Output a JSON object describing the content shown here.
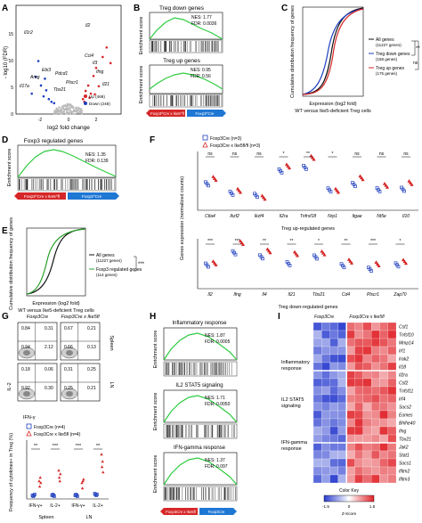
{
  "panels": {
    "A": {
      "letter": "A",
      "xlabel": "log2 fold change",
      "ylabel": "- log10 (FDR)",
      "yticks": [
        "0",
        "5",
        "10",
        "15"
      ],
      "xticks": [
        "-2",
        "0",
        "2"
      ],
      "genes": [
        "Il1r2",
        "Areg",
        "Ebi3",
        "Il17a",
        "Tbx21",
        "Pdcd1",
        "Plscr1",
        "Il2",
        "Ifng",
        "Il21",
        "Ccl4",
        "Il3"
      ],
      "legend": [
        {
          "label": "Up (469)",
          "color": "#d62728"
        },
        {
          "label": "Down (248)",
          "color": "#1f3fbf"
        }
      ],
      "volcano_points": [
        {
          "x": -2.8,
          "y": 3.0
        },
        {
          "x": -2.5,
          "y": 5.5
        },
        {
          "x": -2.3,
          "y": 7.8
        },
        {
          "x": -2.1,
          "y": 4.2
        },
        {
          "x": -1.9,
          "y": 2.6
        },
        {
          "x": -1.7,
          "y": 3.5
        },
        {
          "x": -1.5,
          "y": 2.2
        },
        {
          "x": -1.3,
          "y": 1.8
        },
        {
          "x": -1.1,
          "y": 1.6
        },
        {
          "x": -1.8,
          "y": 5.2
        },
        {
          "x": 1.1,
          "y": 2.2
        },
        {
          "x": 1.3,
          "y": 3.4
        },
        {
          "x": 1.5,
          "y": 4.2
        },
        {
          "x": 1.7,
          "y": 3.0
        },
        {
          "x": 1.9,
          "y": 5.6
        },
        {
          "x": 2.1,
          "y": 6.8
        },
        {
          "x": 2.3,
          "y": 4.1
        },
        {
          "x": 2.6,
          "y": 8.4
        },
        {
          "x": 2.9,
          "y": 9.8
        },
        {
          "x": 3.2,
          "y": 7.5
        },
        {
          "x": 1.2,
          "y": 1.8
        },
        {
          "x": 1.6,
          "y": 2.4
        },
        {
          "x": 2.0,
          "y": 2.9
        }
      ]
    },
    "B": {
      "letter": "B",
      "top": {
        "title": "Treg down genes",
        "nes": "NES: 1.77",
        "fdr": "FDR: 0.0036"
      },
      "bottom": {
        "title": "Treg up genes",
        "nes": "NES: 0.95",
        "fdr": "FDR: 0.56"
      },
      "ylabel": "Enrichment score",
      "bar_left": "Foxp3^Cre x Ike5^fl",
      "bar_right": "Foxp3^Cre"
    },
    "C": {
      "letter": "C",
      "ylabel": "Cumulative distribution frequency of genes",
      "xlabel": "Expression (log2 fold)",
      "caption": "WT versus Ike5-deficient Treg cells",
      "legend": [
        {
          "label": "All genes",
          "sub": "(11227 genes)",
          "color": "#111111"
        },
        {
          "label": "Treg down genes",
          "sub": "(158 genes)",
          "color": "#1f3fbf"
        },
        {
          "label": "Treg up genes",
          "sub": "(175 genes)",
          "color": "#d62728"
        }
      ],
      "sig1": "**",
      "sig2": "ns"
    },
    "D": {
      "letter": "D",
      "title": "Foxp3 regulated genes",
      "nes": "NES: 1.35",
      "fdr": "FDR: 0.139",
      "ylabel": "Enrichment score",
      "bar_left": "Foxp3^Cre x Ike5^fl",
      "bar_right": "Foxp3^Cre"
    },
    "E": {
      "letter": "E",
      "ylabel": "Cumulative distribution frequency of genes",
      "xlabel": "Expression (log2 fold)",
      "caption": "WT versus Ike5-deficient Treg cells",
      "legend": [
        {
          "label": "All genes",
          "sub": "(11227 genes)",
          "color": "#111111"
        },
        {
          "label": "Foxp3 regulated genes",
          "sub": "(114 genes)",
          "color": "#2ca02c"
        }
      ],
      "sig": "***"
    },
    "F": {
      "letter": "F",
      "legend": [
        {
          "label": "Foxp3Cre (n=3)",
          "color": "#1f3fbf"
        },
        {
          "label": "Foxp3Cre x Ike5fl/fl (n=3)",
          "color": "#d62728"
        }
      ],
      "ylabel": "Genes expression (normalized counts)",
      "top_caption": "Treg up-regulated genes",
      "bottom_caption": "Treg down-regulated genes",
      "top_genes": [
        "Ctla4",
        "Ikzf2",
        "Ikzf4",
        "Il2ra",
        "Tnfrsf18",
        "Nrp1",
        "Itgae",
        "Nt5e",
        "Il10"
      ],
      "top_sig": [
        "ns",
        "ns",
        "ns",
        "*",
        "**",
        "*",
        "ns",
        "ns",
        "ns"
      ],
      "bottom_genes": [
        "Il2",
        "Ifng",
        "Il4",
        "Il21",
        "Tbx21",
        "Cd4",
        "Plscr1",
        "Zap70"
      ],
      "bottom_sig": [
        "***",
        "***",
        "**",
        "**",
        "*",
        "**",
        "***",
        "*"
      ]
    },
    "G": {
      "letter": "G",
      "col1": "Foxp3Cre",
      "col2": "Foxp3Cre x Ike5fl",
      "row1": "Spleen",
      "row2": "LN",
      "quads": [
        [
          "0.84",
          "0.31",
          "0.94",
          "2.12"
        ],
        [
          "0.67",
          "0.21",
          "0.66",
          "0.13"
        ],
        [
          "0.18",
          "0.06",
          "0.92",
          "0.30"
        ],
        [
          "0.31",
          "0.25",
          "0.25",
          "0.21"
        ]
      ],
      "xaxis": "IFN-γ",
      "yaxis": "IL-2",
      "legend": [
        {
          "label": "Foxp3Cre (n=4)",
          "color": "#1f3fbf"
        },
        {
          "label": "Foxp3Cre x Ike5fl (n=4)",
          "color": "#d62728"
        }
      ],
      "ylabel": "Frequency of cytokines+ in Treg (%)",
      "cats": [
        "IFN-γ+",
        "IL-2+",
        "IFN-γ+",
        "IL-2+"
      ],
      "sig": [
        "**",
        "***",
        "***",
        "**"
      ],
      "groups": [
        "Spleen",
        "LN"
      ]
    },
    "H": {
      "letter": "H",
      "ylabel": "Enrichment score",
      "sets": [
        {
          "title": "Inflammatory response",
          "nes": "NES: 1.87",
          "fdr": "FDR: 0.0005"
        },
        {
          "title": "IL2 STAT5 signaling",
          "nes": "NES: 1.71",
          "fdr": "FDR: 0.0050"
        },
        {
          "title": "IFN-gamma response",
          "nes": "NES: 1.37",
          "fdr": "FDR: 0.097"
        }
      ],
      "bar_left": "Foxp3Cre x Ike5fl",
      "bar_right": "Foxp3Cre"
    },
    "I": {
      "letter": "I",
      "col1": "Foxp3Cre",
      "col2": "Foxp3Cre x Ike5fl",
      "groups": [
        "Inflammatory response",
        "IL2 STAT5 signaling",
        "IFN-gamma response"
      ],
      "genes": [
        "Csf1",
        "Tnfsf10",
        "Mmp14",
        "Irf1",
        "Irak2",
        "Il18",
        "Il2ra",
        "Csf2",
        "Tnfsf11",
        "Irf4",
        "Socs2",
        "Eomes",
        "Bhlhe40",
        "Ifng",
        "Tbx21",
        "Jak2",
        "Stat1",
        "Socs1",
        "Ifitm2",
        "Ifitm3"
      ],
      "color_key": "Color Key",
      "scale_label": "Z-Score",
      "ticks": [
        "-1.5",
        "0",
        "1.5"
      ]
    }
  }
}
